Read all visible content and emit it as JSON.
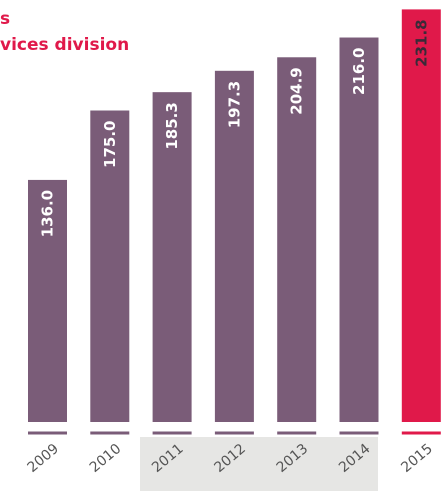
{
  "chart_data": {
    "type": "bar",
    "title_lines": [
      "s",
      "vices division"
    ],
    "categories": [
      "2009",
      "2010",
      "2011",
      "2012",
      "2013",
      "2014",
      "2015"
    ],
    "values": [
      136.0,
      175.0,
      185.3,
      197.3,
      204.9,
      216.0,
      231.8
    ],
    "value_labels": [
      "136.0",
      "175.0",
      "185.3",
      "197.3",
      "204.9",
      "216.0",
      "231.8"
    ],
    "colors": [
      "#7a5c78",
      "#7a5c78",
      "#7a5c78",
      "#7a5c78",
      "#7a5c78",
      "#7a5c78",
      "#e0194a"
    ]
  }
}
